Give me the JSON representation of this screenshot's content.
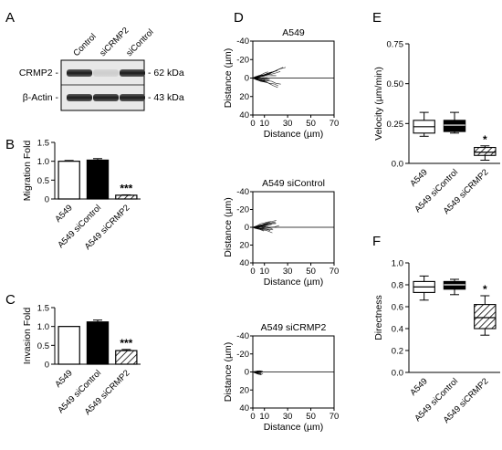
{
  "panels": {
    "A": "A",
    "B": "B",
    "C": "C",
    "D": "D",
    "E": "E",
    "F": "F"
  },
  "western_blot": {
    "lanes": [
      "Control",
      "siCRMP2",
      "siControl"
    ],
    "rows": [
      {
        "name": "CRMP2",
        "marker": "62 kDa",
        "intensity": [
          0.95,
          0.12,
          0.95
        ]
      },
      {
        "name": "β-Actin",
        "marker": "43 kDa",
        "intensity": [
          0.95,
          0.95,
          0.95
        ]
      }
    ]
  },
  "chart_data": [
    {
      "id": "B",
      "type": "bar",
      "categories": [
        "A549",
        "A549 siControl",
        "A549 siCRMP2"
      ],
      "values": [
        1.0,
        1.03,
        0.1
      ],
      "errors": [
        0.02,
        0.04,
        0.01
      ],
      "fill": [
        "white",
        "black",
        "hatch"
      ],
      "ylabel": "Migration Fold",
      "ylim": [
        0,
        1.5
      ],
      "yticks": [
        "0",
        "0.5",
        "1.0",
        "1.5"
      ],
      "annotations": [
        {
          "category": "A549 siCRMP2",
          "text": "***"
        }
      ]
    },
    {
      "id": "C",
      "type": "bar",
      "categories": [
        "A549",
        "A549 siControl",
        "A549 siCRMP2"
      ],
      "values": [
        1.0,
        1.12,
        0.36
      ],
      "errors": [
        0.0,
        0.05,
        0.03
      ],
      "fill": [
        "white",
        "black",
        "hatch"
      ],
      "ylabel": "Invasion Fold",
      "ylim": [
        0,
        1.5
      ],
      "yticks": [
        "0",
        "0.5",
        "1.0",
        "1.5"
      ],
      "annotations": [
        {
          "category": "A549 siCRMP2",
          "text": "***"
        }
      ]
    },
    {
      "id": "D1",
      "type": "line",
      "title": "A549",
      "xlabel": "Distance (µm)",
      "ylabel": "Distance (µm)",
      "xlim": [
        0,
        70
      ],
      "ylim": [
        40,
        -40
      ],
      "xticks": [
        "0",
        "10",
        "30",
        "50",
        "70"
      ],
      "yticks": [
        "-40",
        "-20",
        "0",
        "20",
        "40"
      ],
      "extent": 30
    },
    {
      "id": "D2",
      "type": "line",
      "title": "A549 siControl",
      "xlabel": "Distance (µm)",
      "ylabel": "Distance (µm)",
      "xlim": [
        0,
        70
      ],
      "ylim": [
        40,
        -40
      ],
      "xticks": [
        "0",
        "10",
        "30",
        "50",
        "70"
      ],
      "yticks": [
        "-40",
        "-20",
        "0",
        "20",
        "40"
      ],
      "extent": 22
    },
    {
      "id": "D3",
      "type": "line",
      "title": "A549 siCRMP2",
      "xlabel": "Distance (µm)",
      "ylabel": "Distance (µm)",
      "xlim": [
        0,
        70
      ],
      "ylim": [
        40,
        -40
      ],
      "xticks": [
        "0",
        "10",
        "30",
        "50",
        "70"
      ],
      "yticks": [
        "-40",
        "-20",
        "0",
        "20",
        "40"
      ],
      "extent": 9
    },
    {
      "id": "E",
      "type": "box",
      "categories": [
        "A549",
        "A549 siControl",
        "A549 siCRMP2"
      ],
      "ylabel": "Velocity (µm/min)",
      "ylim": [
        0,
        0.75
      ],
      "yticks": [
        "0.0",
        "0.25",
        "0.50",
        "0.75"
      ],
      "boxes": [
        {
          "min": 0.17,
          "q1": 0.19,
          "median": 0.23,
          "q3": 0.27,
          "max": 0.32
        },
        {
          "min": 0.19,
          "q1": 0.2,
          "median": 0.24,
          "q3": 0.27,
          "max": 0.32
        },
        {
          "min": 0.02,
          "q1": 0.05,
          "median": 0.07,
          "q3": 0.1,
          "max": 0.11
        }
      ],
      "fill": [
        "white",
        "black",
        "hatch"
      ],
      "annotations": [
        {
          "category": "A549 siCRMP2",
          "text": "*"
        }
      ]
    },
    {
      "id": "F",
      "type": "box",
      "categories": [
        "A549",
        "A549 siControl",
        "A549 siCRMP2"
      ],
      "ylabel": "Directness",
      "ylim": [
        0,
        1.0
      ],
      "yticks": [
        "0.0",
        "0.2",
        "0.4",
        "0.6",
        "0.8",
        "1.0"
      ],
      "boxes": [
        {
          "min": 0.66,
          "q1": 0.73,
          "median": 0.78,
          "q3": 0.83,
          "max": 0.88
        },
        {
          "min": 0.71,
          "q1": 0.76,
          "median": 0.8,
          "q3": 0.83,
          "max": 0.85
        },
        {
          "min": 0.34,
          "q1": 0.4,
          "median": 0.5,
          "q3": 0.62,
          "max": 0.7
        }
      ],
      "fill": [
        "white",
        "black",
        "hatch"
      ],
      "annotations": [
        {
          "category": "A549 siCRMP2",
          "text": "*"
        }
      ]
    }
  ]
}
